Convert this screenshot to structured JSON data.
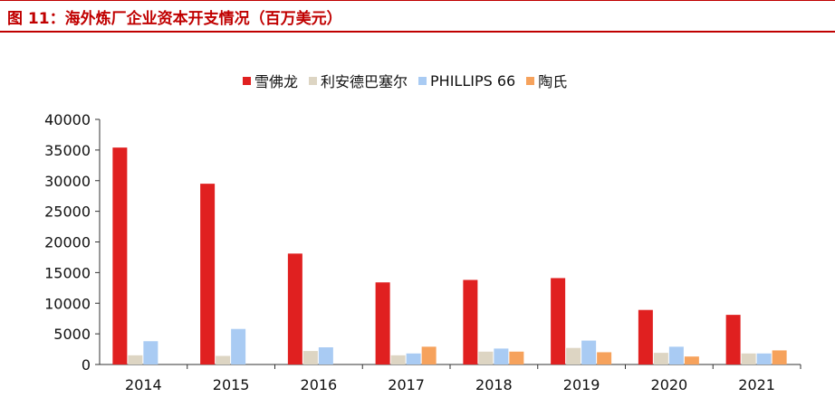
{
  "header": {
    "title": "图 11：海外炼厂企业资本开支情况（百万美元）"
  },
  "chart_data": {
    "type": "bar",
    "title": "",
    "xlabel": "",
    "ylabel": "",
    "categories": [
      "2014",
      "2015",
      "2016",
      "2017",
      "2018",
      "2019",
      "2020",
      "2021"
    ],
    "ylim": [
      0,
      40000
    ],
    "yticks": [
      0,
      5000,
      10000,
      15000,
      20000,
      25000,
      30000,
      35000,
      40000
    ],
    "legend_position": "top",
    "grid": false,
    "series": [
      {
        "name": "雪佛龙",
        "color": "#e02020",
        "values": [
          35400,
          29500,
          18100,
          13400,
          13800,
          14100,
          8900,
          8100
        ]
      },
      {
        "name": "利安德巴塞尔",
        "color": "#ddd5c3",
        "values": [
          1500,
          1400,
          2200,
          1500,
          2100,
          2700,
          1900,
          1800
        ]
      },
      {
        "name": "PHILLIPS 66",
        "color": "#a9cbf3",
        "values": [
          3800,
          5800,
          2800,
          1800,
          2600,
          3900,
          2900,
          1800
        ]
      },
      {
        "name": "陶氏",
        "color": "#f6a25c",
        "values": [
          0,
          0,
          0,
          2900,
          2100,
          2000,
          1300,
          2300
        ]
      }
    ]
  }
}
